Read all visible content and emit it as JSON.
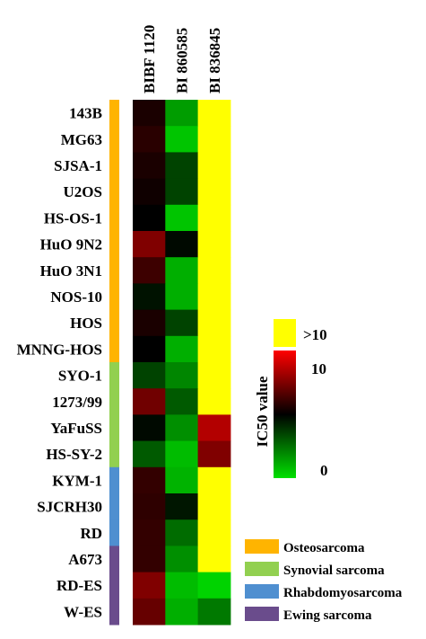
{
  "chart_data": {
    "type": "heatmap",
    "columns": [
      "BIBF 1120",
      "BI 860585",
      "BI 836845"
    ],
    "rows": [
      "143B",
      "MG63",
      "SJSA-1",
      "U2OS",
      "HS-OS-1",
      "HuO 9N2",
      "HuO 3N1",
      "NOS-10",
      "HOS",
      "MNNG-HOS",
      "SYO-1",
      "1273/99",
      "YaFuSS",
      "HS-SY-2",
      "KYM-1",
      "SJCRH30",
      "RD",
      "A673",
      "RD-ES",
      "W-ES"
    ],
    "row_groups": [
      "Osteosarcoma",
      "Osteosarcoma",
      "Osteosarcoma",
      "Osteosarcoma",
      "Osteosarcoma",
      "Osteosarcoma",
      "Osteosarcoma",
      "Osteosarcoma",
      "Osteosarcoma",
      "Osteosarcoma",
      "Synovial sarcoma",
      "Synovial sarcoma",
      "Synovial sarcoma",
      "Synovial sarcoma",
      "Rhabdomyosarcoma",
      "Rhabdomyosarcoma",
      "Rhabdomyosarcoma",
      "Ewing sarcoma",
      "Ewing sarcoma",
      "Ewing sarcoma"
    ],
    "values": [
      [
        5.5,
        1.5,
        ">10"
      ],
      [
        5.8,
        0.6,
        ">10"
      ],
      [
        5.5,
        3.5,
        ">10"
      ],
      [
        5.3,
        3.5,
        ">10"
      ],
      [
        5.0,
        0.6,
        ">10"
      ],
      [
        7.5,
        4.8,
        ">10"
      ],
      [
        6.2,
        1.1,
        ">10"
      ],
      [
        4.6,
        1.1,
        ">10"
      ],
      [
        5.5,
        3.5,
        ">10"
      ],
      [
        5.0,
        1.1,
        ">10"
      ],
      [
        3.5,
        2.0,
        ">10"
      ],
      [
        7.2,
        3.0,
        ">10"
      ],
      [
        4.8,
        1.8,
        8.5
      ],
      [
        3.0,
        0.8,
        7.5
      ],
      [
        6.0,
        1.0,
        ">10"
      ],
      [
        5.9,
        4.5,
        ">10"
      ],
      [
        6.0,
        2.6,
        ">10"
      ],
      [
        6.0,
        1.8,
        ">10"
      ],
      [
        7.5,
        0.8,
        0.3
      ],
      [
        7.0,
        1.1,
        2.3
      ]
    ],
    "scale": {
      "title": "IC50 value",
      "min": 0,
      "max": 10,
      "min_label": "0",
      "max_label": "10",
      "overflow_label": ">10",
      "colors": {
        "low": "#00e000",
        "mid": "#000000",
        "high": "#ff0000",
        "overflow": "#ffff00"
      }
    },
    "legend": [
      {
        "name": "Osteosarcoma",
        "color": "#ffb400"
      },
      {
        "name": "Synovial sarcoma",
        "color": "#92d050"
      },
      {
        "name": "Rhabdomyosarcoma",
        "color": "#4f8fd0"
      },
      {
        "name": "Ewing sarcoma",
        "color": "#6a4c8c"
      }
    ]
  }
}
